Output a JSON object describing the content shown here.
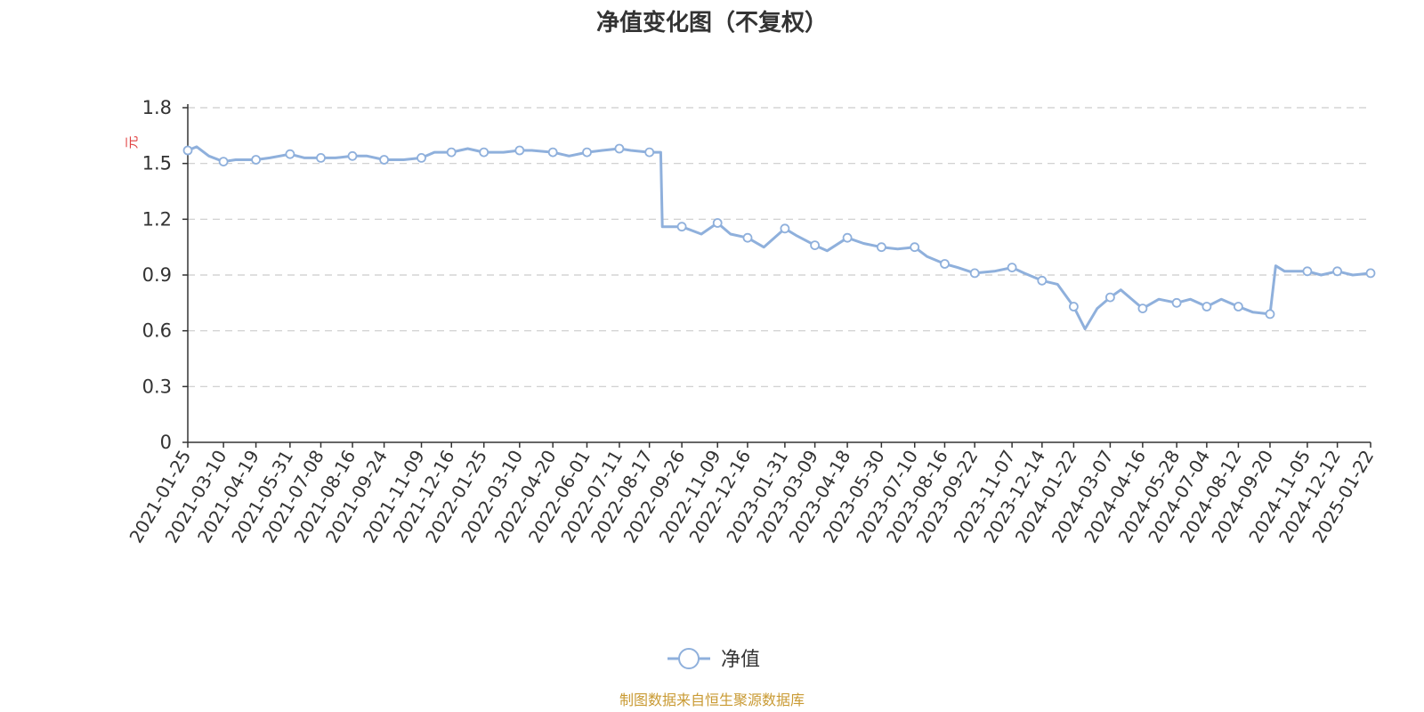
{
  "title": "净值变化图（不复权）",
  "unit_label": "元",
  "source_note": "制图数据来自恒生聚源数据库",
  "colors": {
    "series": "#8fb0dc",
    "unit": "#e04040",
    "source": "#c99a33",
    "grid": "#cccccc",
    "axis": "#333333"
  },
  "chart_data": {
    "type": "line",
    "title": "净值变化图（不复权）",
    "ylabel": "元",
    "ylim": [
      0,
      1.8
    ],
    "yticks": [
      "0",
      "0.3",
      "0.6",
      "0.9",
      "1.2",
      "1.5",
      "1.8"
    ],
    "grid": true,
    "legend_position": "bottom-center",
    "x_tick_labels": [
      "2021-01-25",
      "2021-03-10",
      "2021-04-19",
      "2021-05-31",
      "2021-07-08",
      "2021-08-16",
      "2021-09-24",
      "2021-11-09",
      "2021-12-16",
      "2022-01-25",
      "2022-03-10",
      "2022-04-20",
      "2022-06-01",
      "2022-07-11",
      "2022-08-17",
      "2022-09-26",
      "2022-11-09",
      "2022-12-16",
      "2023-01-31",
      "2023-03-09",
      "2023-04-18",
      "2023-05-30",
      "2023-07-10",
      "2023-08-16",
      "2023-09-22",
      "2023-11-07",
      "2023-12-14",
      "2024-01-22",
      "2024-03-07",
      "2024-04-16",
      "2024-05-28",
      "2024-07-04",
      "2024-08-12",
      "2024-09-20",
      "2024-11-05",
      "2024-12-12",
      "2025-01-22"
    ],
    "series": [
      {
        "name": "净值",
        "x": [
          "2021-01-25",
          "2021-02-05",
          "2021-02-20",
          "2021-03-10",
          "2021-03-25",
          "2021-04-19",
          "2021-05-06",
          "2021-05-31",
          "2021-06-18",
          "2021-07-08",
          "2021-07-26",
          "2021-08-16",
          "2021-09-03",
          "2021-09-24",
          "2021-10-18",
          "2021-11-09",
          "2021-11-25",
          "2021-12-16",
          "2022-01-05",
          "2022-01-25",
          "2022-02-18",
          "2022-03-10",
          "2022-03-25",
          "2022-04-20",
          "2022-05-10",
          "2022-06-01",
          "2022-06-20",
          "2022-07-11",
          "2022-07-25",
          "2022-08-17",
          "2022-08-31",
          "2022-09-02",
          "2022-09-26",
          "2022-10-20",
          "2022-11-09",
          "2022-11-25",
          "2022-12-16",
          "2023-01-05",
          "2023-01-31",
          "2023-02-15",
          "2023-03-09",
          "2023-03-24",
          "2023-04-18",
          "2023-05-08",
          "2023-05-30",
          "2023-06-19",
          "2023-07-10",
          "2023-07-25",
          "2023-08-16",
          "2023-09-01",
          "2023-09-22",
          "2023-10-16",
          "2023-11-07",
          "2023-11-22",
          "2023-12-14",
          "2024-01-02",
          "2024-01-22",
          "2024-02-05",
          "2024-02-20",
          "2024-03-07",
          "2024-03-20",
          "2024-04-16",
          "2024-05-06",
          "2024-05-28",
          "2024-06-14",
          "2024-07-04",
          "2024-07-22",
          "2024-08-12",
          "2024-08-30",
          "2024-09-20",
          "2024-09-27",
          "2024-10-08",
          "2024-11-05",
          "2024-11-22",
          "2024-12-12",
          "2024-12-31",
          "2025-01-22"
        ],
        "values": [
          1.57,
          1.59,
          1.54,
          1.51,
          1.52,
          1.52,
          1.53,
          1.55,
          1.53,
          1.53,
          1.53,
          1.54,
          1.54,
          1.52,
          1.52,
          1.53,
          1.56,
          1.56,
          1.58,
          1.56,
          1.56,
          1.57,
          1.57,
          1.56,
          1.54,
          1.56,
          1.57,
          1.58,
          1.57,
          1.56,
          1.56,
          1.16,
          1.16,
          1.12,
          1.18,
          1.12,
          1.1,
          1.05,
          1.15,
          1.11,
          1.06,
          1.03,
          1.1,
          1.07,
          1.05,
          1.04,
          1.05,
          1.0,
          0.96,
          0.94,
          0.91,
          0.92,
          0.94,
          0.91,
          0.87,
          0.85,
          0.73,
          0.61,
          0.72,
          0.78,
          0.82,
          0.72,
          0.77,
          0.75,
          0.77,
          0.73,
          0.77,
          0.73,
          0.7,
          0.69,
          0.95,
          0.92,
          0.92,
          0.9,
          0.92,
          0.9,
          0.91
        ],
        "markers_at": [
          0,
          3,
          5,
          7,
          9,
          11,
          13,
          15,
          17,
          19,
          21,
          23,
          25,
          27,
          29,
          32,
          34,
          36,
          38,
          40,
          42,
          44,
          46,
          48,
          50,
          52,
          54,
          56,
          59,
          61,
          63,
          65,
          67,
          69,
          72,
          74,
          76
        ]
      }
    ]
  },
  "legend": {
    "label": "净值"
  }
}
